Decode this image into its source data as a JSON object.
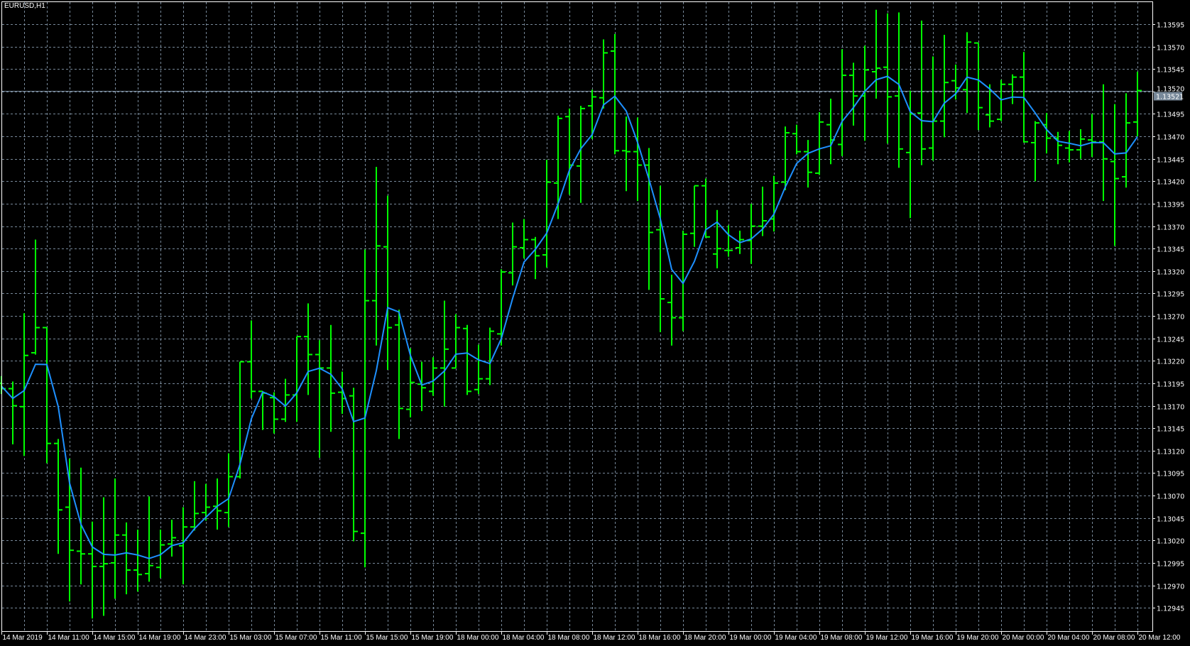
{
  "chart_data": {
    "type": "bar",
    "style": "ohlc",
    "title": "EURUSD,H1",
    "current_price": "1.13521",
    "grid": true,
    "indicators": [
      {
        "type": "moving average",
        "color": "#1E90FF"
      }
    ],
    "colors": {
      "background": "#000000",
      "bars": "#00FF00",
      "ma": "#1E90FF",
      "grid": "#778899",
      "price_line": "#778899",
      "axis": "#FFFFFF"
    },
    "ylim": [
      1.12925,
      1.1362
    ],
    "y_tick_labels": [
      "1.13595",
      "1.13570",
      "1.13545",
      "1.13520",
      "1.13495",
      "1.13470",
      "1.13445",
      "1.13420",
      "1.13395",
      "1.13370",
      "1.13345",
      "1.13320",
      "1.13295",
      "1.13270",
      "1.13245",
      "1.13220",
      "1.13195",
      "1.13170",
      "1.13145",
      "1.13120",
      "1.13095",
      "1.13070",
      "1.13045",
      "1.13020",
      "1.12995",
      "1.12970",
      "1.12945"
    ],
    "x_tick_labels": [
      "14 Mar 2019",
      "14 Mar 11:00",
      "14 Mar 15:00",
      "14 Mar 19:00",
      "14 Mar 23:00",
      "15 Mar 03:00",
      "15 Mar 07:00",
      "15 Mar 11:00",
      "15 Mar 15:00",
      "15 Mar 19:00",
      "18 Mar 00:00",
      "18 Mar 04:00",
      "18 Mar 08:00",
      "18 Mar 12:00",
      "18 Mar 16:00",
      "18 Mar 20:00",
      "19 Mar 00:00",
      "19 Mar 04:00",
      "19 Mar 08:00",
      "19 Mar 12:00",
      "19 Mar 16:00",
      "19 Mar 20:00",
      "20 Mar 00:00",
      "20 Mar 04:00",
      "20 Mar 08:00",
      "20 Mar 12:00"
    ],
    "ohlc_fields": [
      "open",
      "high",
      "low",
      "close"
    ],
    "ohlc": [
      [
        1.13195,
        1.13203,
        1.13183,
        1.13189
      ],
      [
        1.13189,
        1.13197,
        1.13127,
        1.1317
      ],
      [
        1.13169,
        1.13273,
        1.13114,
        1.13226
      ],
      [
        1.13229,
        1.13355,
        1.13227,
        1.13257
      ],
      [
        1.13257,
        1.13257,
        1.13106,
        1.13128
      ],
      [
        1.13128,
        1.13133,
        1.13005,
        1.13054
      ],
      [
        1.13057,
        1.13111,
        1.12952,
        1.13009
      ],
      [
        1.13008,
        1.13101,
        1.12971,
        1.13005
      ],
      [
        1.13005,
        1.13041,
        1.12933,
        1.12991
      ],
      [
        1.12991,
        1.13068,
        1.12936,
        1.12994
      ],
      [
        1.12995,
        1.13089,
        1.12955,
        1.13026
      ],
      [
        1.13026,
        1.1304,
        1.1296,
        1.12987
      ],
      [
        1.12987,
        1.13032,
        1.12963,
        1.12982
      ],
      [
        1.12983,
        1.13069,
        1.12974,
        1.12992
      ],
      [
        1.1299,
        1.13032,
        1.12978,
        1.13015
      ],
      [
        1.13016,
        1.13043,
        1.13002,
        1.13023
      ],
      [
        1.13014,
        1.13057,
        1.12971,
        1.13035
      ],
      [
        1.13035,
        1.13086,
        1.13031,
        1.1305
      ],
      [
        1.13051,
        1.13083,
        1.13042,
        1.13057
      ],
      [
        1.13058,
        1.13089,
        1.13032,
        1.13053
      ],
      [
        1.13051,
        1.13117,
        1.13035,
        1.13091
      ],
      [
        1.13091,
        1.13219,
        1.13089,
        1.13219
      ],
      [
        1.13219,
        1.13265,
        1.13178,
        1.13186
      ],
      [
        1.13186,
        1.13186,
        1.13143,
        1.13184
      ],
      [
        1.13179,
        1.13185,
        1.13139,
        1.13155
      ],
      [
        1.13155,
        1.132,
        1.13152,
        1.13182
      ],
      [
        1.13182,
        1.13247,
        1.13152,
        1.13247
      ],
      [
        1.13247,
        1.13284,
        1.13182,
        1.13227
      ],
      [
        1.13227,
        1.13243,
        1.13112,
        1.13212
      ],
      [
        1.13212,
        1.1326,
        1.13141,
        1.13184
      ],
      [
        1.13185,
        1.13208,
        1.13161,
        1.13178
      ],
      [
        1.13181,
        1.1319,
        1.13019,
        1.1303
      ],
      [
        1.13028,
        1.13344,
        1.1299,
        1.13287
      ],
      [
        1.13287,
        1.13436,
        1.13237,
        1.13348
      ],
      [
        1.13347,
        1.13404,
        1.1321,
        1.13257
      ],
      [
        1.1326,
        1.13277,
        1.13133,
        1.13167
      ],
      [
        1.13166,
        1.13234,
        1.13157,
        1.13196
      ],
      [
        1.13194,
        1.13219,
        1.13164,
        1.1319
      ],
      [
        1.13186,
        1.13224,
        1.13181,
        1.13212
      ],
      [
        1.13212,
        1.13287,
        1.13169,
        1.13233
      ],
      [
        1.13212,
        1.13272,
        1.13212,
        1.13257
      ],
      [
        1.13256,
        1.1326,
        1.13182,
        1.13186
      ],
      [
        1.13188,
        1.13238,
        1.13183,
        1.132
      ],
      [
        1.132,
        1.13257,
        1.13193,
        1.13253
      ],
      [
        1.1325,
        1.13322,
        1.13237,
        1.13319
      ],
      [
        1.13318,
        1.13374,
        1.13304,
        1.13347
      ],
      [
        1.13346,
        1.13378,
        1.13334,
        1.13355
      ],
      [
        1.13355,
        1.13358,
        1.13311,
        1.13337
      ],
      [
        1.13338,
        1.13444,
        1.13324,
        1.13419
      ],
      [
        1.13418,
        1.13493,
        1.13378,
        1.1349
      ],
      [
        1.13492,
        1.13501,
        1.13405,
        1.13438
      ],
      [
        1.13437,
        1.13504,
        1.13396,
        1.13501
      ],
      [
        1.13504,
        1.13522,
        1.13467,
        1.13514
      ],
      [
        1.13513,
        1.13578,
        1.13501,
        1.13563
      ],
      [
        1.13565,
        1.13584,
        1.1345,
        1.13454
      ],
      [
        1.13454,
        1.13492,
        1.13409,
        1.13453
      ],
      [
        1.13453,
        1.13491,
        1.13398,
        1.13438
      ],
      [
        1.13438,
        1.13457,
        1.13299,
        1.13363
      ],
      [
        1.13366,
        1.13415,
        1.13252,
        1.13289
      ],
      [
        1.13285,
        1.13316,
        1.13237,
        1.13268
      ],
      [
        1.13268,
        1.13365,
        1.13253,
        1.13361
      ],
      [
        1.13362,
        1.13415,
        1.13347,
        1.13415
      ],
      [
        1.13415,
        1.13423,
        1.13357,
        1.13358
      ],
      [
        1.13339,
        1.13388,
        1.13323,
        1.13345
      ],
      [
        1.13343,
        1.13371,
        1.13336,
        1.13343
      ],
      [
        1.13346,
        1.13365,
        1.13339,
        1.13355
      ],
      [
        1.13354,
        1.13395,
        1.13328,
        1.1337
      ],
      [
        1.1337,
        1.13414,
        1.13359,
        1.13376
      ],
      [
        1.13378,
        1.13426,
        1.13364,
        1.13418
      ],
      [
        1.13419,
        1.13481,
        1.1341,
        1.13474
      ],
      [
        1.13473,
        1.13483,
        1.1345,
        1.13453
      ],
      [
        1.13453,
        1.13466,
        1.13413,
        1.1343
      ],
      [
        1.13429,
        1.13497,
        1.13427,
        1.13486
      ],
      [
        1.13483,
        1.13512,
        1.13439,
        1.13466
      ],
      [
        1.13461,
        1.13567,
        1.13448,
        1.13538
      ],
      [
        1.13538,
        1.13552,
        1.13482,
        1.13515
      ],
      [
        1.13515,
        1.13571,
        1.13465,
        1.13544
      ],
      [
        1.13542,
        1.13611,
        1.13512,
        1.13546
      ],
      [
        1.13547,
        1.13607,
        1.13462,
        1.13514
      ],
      [
        1.13515,
        1.13608,
        1.13435,
        1.13456
      ],
      [
        1.13452,
        1.13521,
        1.13379,
        1.13495
      ],
      [
        1.13496,
        1.13599,
        1.13438,
        1.13456
      ],
      [
        1.13457,
        1.13559,
        1.13443,
        1.13487
      ],
      [
        1.13487,
        1.13583,
        1.13469,
        1.1353
      ],
      [
        1.13532,
        1.1355,
        1.13511,
        1.13524
      ],
      [
        1.13522,
        1.13586,
        1.13496,
        1.13575
      ],
      [
        1.13574,
        1.13574,
        1.13477,
        1.13502
      ],
      [
        1.13494,
        1.13528,
        1.1348,
        1.13487
      ],
      [
        1.13489,
        1.13533,
        1.13487,
        1.13528
      ],
      [
        1.13528,
        1.13539,
        1.13506,
        1.13536
      ],
      [
        1.13536,
        1.13564,
        1.13463,
        1.13464
      ],
      [
        1.13463,
        1.13487,
        1.1342,
        1.13485
      ],
      [
        1.13483,
        1.13496,
        1.13451,
        1.13468
      ],
      [
        1.13468,
        1.13475,
        1.13439,
        1.1346
      ],
      [
        1.13457,
        1.13476,
        1.13441,
        1.13455
      ],
      [
        1.13455,
        1.13478,
        1.13445,
        1.13467
      ],
      [
        1.13466,
        1.13495,
        1.13447,
        1.13464
      ],
      [
        1.13464,
        1.13528,
        1.13398,
        1.13445
      ],
      [
        1.13442,
        1.13506,
        1.13348,
        1.13423
      ],
      [
        1.13425,
        1.13518,
        1.13413,
        1.13485
      ],
      [
        1.13486,
        1.13542,
        1.1347,
        1.13521
      ]
    ]
  }
}
